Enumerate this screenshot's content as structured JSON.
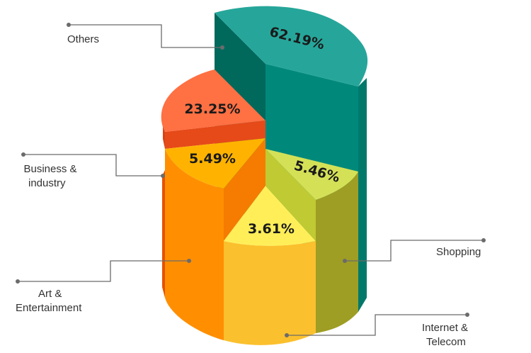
{
  "chart_data": {
    "type": "pie",
    "style": "3d-cylinder",
    "slices": [
      {
        "label": "Others",
        "value": 62.19,
        "value_label": "62.19%",
        "color": "#26A69A"
      },
      {
        "label": "Business & industry",
        "value": 23.25,
        "value_label": "23.25%",
        "color": "#FF7043"
      },
      {
        "label": "Art & Entertainment",
        "value": 5.49,
        "value_label": "5.49%",
        "color": "#FFB300"
      },
      {
        "label": "Internet & Telecom",
        "value": 3.61,
        "value_label": "3.61%",
        "color": "#FFEE58"
      },
      {
        "label": "Shopping",
        "value": 5.46,
        "value_label": "5.46%",
        "color": "#D4E157"
      }
    ]
  },
  "labels": {
    "others": "Others",
    "business_line1": "Business &",
    "business_line2": "industry",
    "art_line1": "Art &",
    "art_line2": "Entertainment",
    "shopping": "Shopping",
    "internet_line1": "Internet &",
    "internet_line2": "Telecom"
  }
}
